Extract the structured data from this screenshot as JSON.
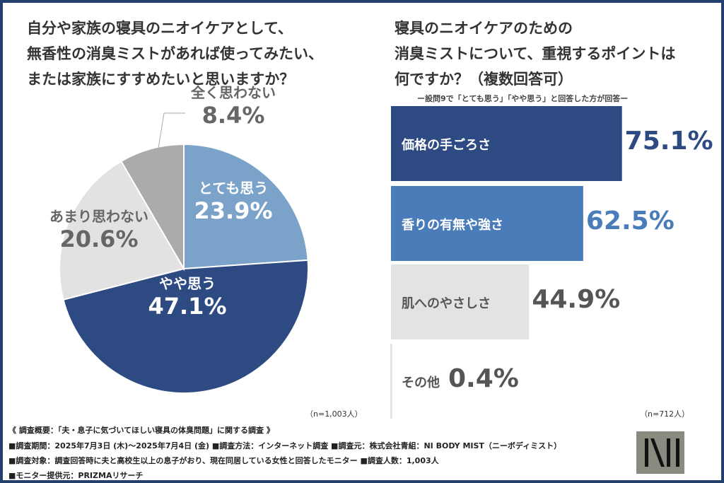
{
  "left": {
    "title": [
      "自分や家族の寝具のニオイケアとして、",
      "無香性の消臭ミストがあれば使ってみたい、",
      "または家族にすすめたいと思いますか？"
    ],
    "n": "（n=1,003人）"
  },
  "right": {
    "title": [
      "寝具のニオイケアのための",
      "消臭ミストについて、重視するポイントは",
      "何ですか？（複数回答可）"
    ],
    "subtitle": "ー設問9で「とても思う」「やや思う」と回答した方が回答ー",
    "n": "（n=712人）"
  },
  "chart_data": [
    {
      "type": "pie",
      "slices": [
        {
          "label": "とても思う",
          "value": 23.9,
          "display": "23.9%",
          "color": "#7ba3c9"
        },
        {
          "label": "やや思う",
          "value": 47.1,
          "display": "47.1%",
          "color": "#2d4a82"
        },
        {
          "label": "あまり思わない",
          "value": 20.6,
          "display": "20.6%",
          "color": "#e2e2e2"
        },
        {
          "label": "全く思わない",
          "value": 8.4,
          "display": "8.4%",
          "color": "#ababab"
        }
      ]
    },
    {
      "type": "bar",
      "orientation": "horizontal",
      "categories": [
        "価格の手ごろさ",
        "香りの有無や強さ",
        "肌へのやさしさ",
        "その他"
      ],
      "values": [
        75.1,
        62.5,
        44.9,
        0.4
      ],
      "display": [
        "75.1%",
        "62.5%",
        "44.9%",
        "0.4%"
      ],
      "colors": [
        "#2d4a82",
        "#4a7cb9",
        "#e3e3e3",
        "#e3e3e3"
      ],
      "value_colors": [
        "#2d4a82",
        "#4a7cb9",
        "#555555",
        "#555555"
      ]
    }
  ],
  "footer": {
    "lines": [
      "《 調査概要：「夫・息子に気づいてほしい寝具の体臭問題」に関する調査 》",
      "■調査期間：2025年7月3日 (木)～2025年7月4日 (金)  ■調査方法：インターネット調査  ■調査元：株式会社青組：NI BODY MIST（ニーボディミスト）",
      "■調査対象：調査回答時に夫と高校生以上の息子がおり、現在同居している女性と回答したモニター  ■調査人数：1,003人",
      "■モニター提供元：PRIZMAリサーチ"
    ]
  },
  "logo": "NI"
}
